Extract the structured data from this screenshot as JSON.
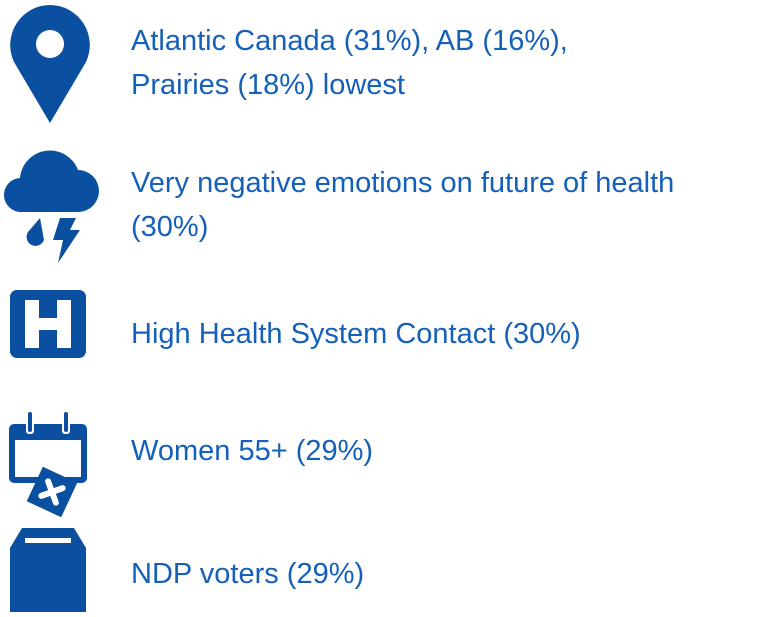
{
  "items": [
    {
      "lines": [
        "Atlantic Canada (31%), AB (16%),",
        "Prairies (18%) lowest"
      ]
    },
    {
      "lines": [
        "Very negative emotions on future of health",
        "(30%)"
      ]
    },
    {
      "lines": [
        "High Health System Contact (30%)"
      ]
    },
    {
      "lines": [
        "Women 55+ (29%)"
      ]
    },
    {
      "lines": [
        "NDP voters (29%)"
      ]
    }
  ]
}
